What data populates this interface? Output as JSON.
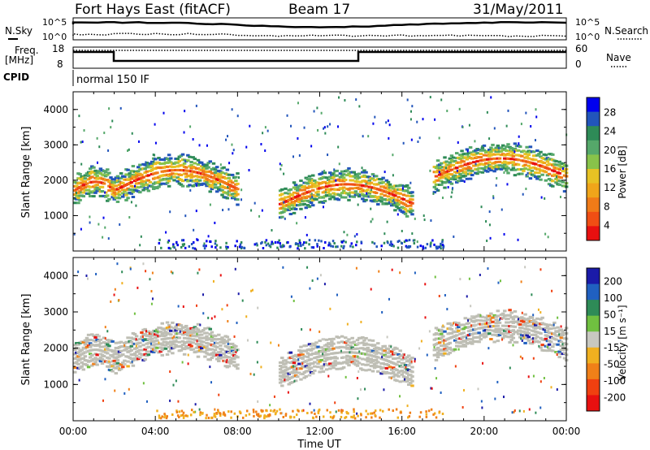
{
  "header": {
    "title": "Fort Hays East (fitACF)",
    "beam": "Beam 17",
    "date": "31/May/2011"
  },
  "summary": {
    "nsky_label": "N.Sky",
    "nsearch_label": "N.Search",
    "freq_label_1": "Freq.",
    "freq_label_2": "[MHz]",
    "nave_label": "Nave",
    "cpid_label": "CPID",
    "cpid_value": "normal 150 IF",
    "noise_ticks": [
      "10^5",
      "10^0"
    ],
    "freq_ticks": [
      "18",
      "8"
    ],
    "nave_ticks": [
      "60",
      "0"
    ]
  },
  "chart_data": [
    {
      "type": "heatmap",
      "name": "power-panel",
      "ylabel": "Slant Range [km]",
      "ylim": [
        0,
        4500
      ],
      "yticks": [
        "4000",
        "3000",
        "2000",
        "1000"
      ],
      "colorbar_label": "Power [dB]",
      "colorbar_ticks": [
        "28",
        "24",
        "20",
        "16",
        "12",
        "8",
        "4"
      ],
      "colorbar_colors": [
        "#0000ee",
        "#2255bb",
        "#2e8b57",
        "#55a86a",
        "#88c34a",
        "#e7c224",
        "#f0a51a",
        "#f07b18",
        "#f04e14",
        "#e81010"
      ],
      "echo_bands": [
        {
          "start_hour": 0.0,
          "end_hour": 2.0,
          "low_km": 1500,
          "high_km": 2200
        },
        {
          "start_hour": 2.0,
          "end_hour": 8.0,
          "low_km": 1200,
          "high_km": 2800
        },
        {
          "start_hour": 10.0,
          "end_hour": 16.5,
          "low_km": 800,
          "high_km": 2400
        },
        {
          "start_hour": 17.5,
          "end_hour": 24.0,
          "low_km": 1600,
          "high_km": 3100
        }
      ]
    },
    {
      "type": "heatmap",
      "name": "velocity-panel",
      "ylabel": "Slant Range [km]",
      "xlabel": "Time UT",
      "ylim": [
        0,
        4500
      ],
      "yticks": [
        "4000",
        "3000",
        "2000",
        "1000"
      ],
      "xticks": [
        "00:00",
        "04:00",
        "08:00",
        "12:00",
        "16:00",
        "20:00",
        "00:00"
      ],
      "colorbar_label": "Velocity [m s⁻¹]",
      "colorbar_ticks": [
        "200",
        "100",
        "50",
        "15",
        "-15",
        "-50",
        "-100",
        "-200"
      ],
      "colorbar_colors": [
        "#1a1aa8",
        "#2060c0",
        "#2e8b57",
        "#70c040",
        "#c8c8c0",
        "#f0b020",
        "#f08018",
        "#f04010",
        "#e81010"
      ]
    }
  ],
  "colors": {
    "background": "#ffffff",
    "ground_scatter": "#bebeb4",
    "axis": "#000000"
  }
}
